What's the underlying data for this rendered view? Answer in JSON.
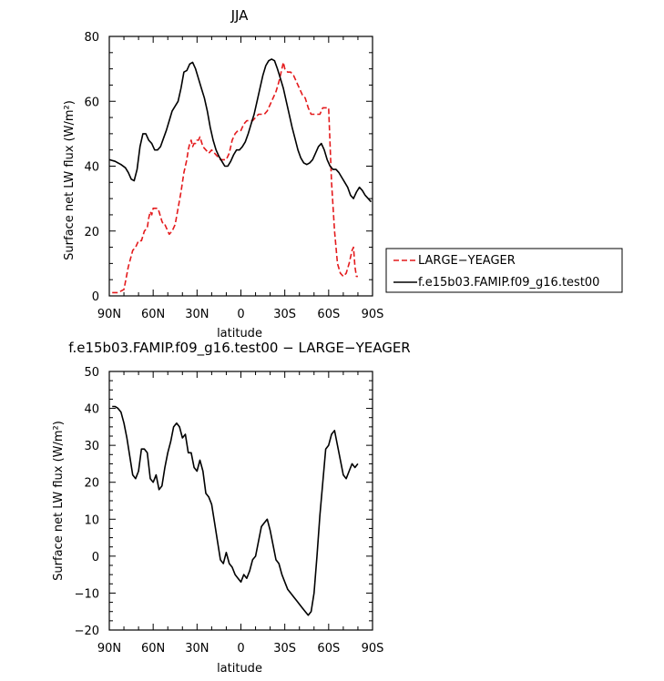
{
  "chart_data": [
    {
      "type": "line",
      "title": "JJA",
      "xlabel": "latitude",
      "ylabel": "Surface net LW flux (W/m²)",
      "xlim": [
        90,
        -90
      ],
      "ylim": [
        0,
        80
      ],
      "xticks": [
        90,
        60,
        30,
        0,
        -30,
        -60,
        -90
      ],
      "xtick_labels": [
        "90N",
        "60N",
        "30N",
        "0",
        "30S",
        "60S",
        "90S"
      ],
      "yticks": [
        0,
        20,
        40,
        60,
        80
      ],
      "ytick_labels": [
        "0",
        "20",
        "40",
        "60",
        "80"
      ],
      "legend_position": "right",
      "series": [
        {
          "name": "LARGE−YEAGER",
          "color": "#e41a1c",
          "dash": "dashed",
          "x": [
            88,
            84,
            80,
            77,
            74,
            72,
            70,
            68,
            66,
            64,
            63,
            62,
            61,
            60,
            59,
            58,
            57,
            56,
            54,
            53,
            52,
            50,
            49,
            47,
            45,
            43,
            41,
            39,
            37,
            36,
            35,
            34,
            33,
            32,
            31,
            30,
            29,
            28,
            26,
            24,
            22,
            20,
            18,
            16,
            14,
            12,
            10,
            8,
            6,
            4,
            2,
            0,
            -2,
            -4,
            -6,
            -8,
            -10,
            -12,
            -14,
            -16,
            -18,
            -20,
            -22,
            -24,
            -26,
            -28,
            -29,
            -30,
            -32,
            -34,
            -36,
            -38,
            -40,
            -42,
            -44,
            -46,
            -48,
            -50,
            -52,
            -54,
            -56,
            -58,
            -60,
            -62,
            -64,
            -66,
            -68,
            -70,
            -72,
            -74,
            -75,
            -76,
            -77,
            -78,
            -79,
            -80
          ],
          "y": [
            1,
            1,
            2,
            9,
            14,
            15,
            17,
            17,
            20,
            21,
            24,
            26,
            25,
            27,
            27,
            27,
            27,
            26,
            23,
            22,
            22,
            20,
            19,
            20,
            22,
            27,
            32,
            38,
            42,
            45,
            47,
            48,
            46,
            47,
            47,
            48,
            48,
            49,
            46,
            45,
            44,
            45,
            44,
            43,
            42,
            42,
            42,
            44,
            48,
            50,
            51,
            51,
            53,
            54,
            54,
            54,
            55,
            56,
            56,
            56,
            57,
            59,
            61,
            63,
            66,
            70,
            72,
            70,
            69,
            69,
            68,
            66,
            64,
            62,
            61,
            58,
            56,
            56,
            56,
            56,
            58,
            58,
            58,
            35,
            20,
            10,
            7,
            6,
            7,
            10,
            12,
            14,
            15,
            9,
            6,
            6
          ]
        },
        {
          "name": "f.e15b03.FAMIP.f09_g16.test00",
          "color": "#000000",
          "dash": "solid",
          "x": [
            90,
            86,
            82,
            79,
            77,
            75,
            73,
            71,
            69,
            67,
            65,
            63,
            61,
            59,
            57,
            55,
            53,
            51,
            49,
            47,
            45,
            43,
            41,
            39,
            37,
            35,
            33,
            31,
            29,
            27,
            25,
            23,
            21,
            19,
            17,
            15,
            13,
            11,
            9,
            7,
            5,
            3,
            1,
            -1,
            -3,
            -5,
            -7,
            -9,
            -11,
            -13,
            -15,
            -17,
            -19,
            -21,
            -23,
            -25,
            -27,
            -29,
            -31,
            -33,
            -35,
            -37,
            -39,
            -41,
            -43,
            -45,
            -47,
            -49,
            -51,
            -53,
            -55,
            -57,
            -59,
            -61,
            -63,
            -65,
            -67,
            -69,
            -71,
            -73,
            -75,
            -77,
            -79,
            -81,
            -83,
            -85,
            -87,
            -89
          ],
          "y": [
            42,
            41.5,
            40.5,
            39.5,
            38,
            36,
            35.5,
            39,
            46,
            50,
            50,
            48,
            47,
            45,
            45,
            46,
            48.5,
            51,
            54,
            57,
            58.5,
            60,
            64,
            69,
            69.5,
            71.5,
            72,
            70,
            67,
            64,
            61,
            57,
            52,
            48,
            45,
            43,
            41.5,
            40,
            40,
            41.5,
            43.5,
            45,
            45,
            46,
            47.5,
            50,
            53,
            56,
            60,
            64,
            68,
            71,
            72.5,
            73,
            72.5,
            70,
            67,
            64,
            60,
            56,
            52,
            48.5,
            45,
            42.5,
            41,
            40.5,
            41,
            42,
            44,
            46,
            47,
            45,
            42,
            40,
            39,
            39,
            38,
            36.5,
            35,
            33.5,
            31,
            30,
            32,
            33.5,
            32.5,
            31,
            30,
            29
          ]
        }
      ]
    },
    {
      "type": "line",
      "title": "f.e15b03.FAMIP.f09_g16.test00 − LARGE−YEAGER",
      "xlabel": "latitude",
      "ylabel": "Surface net LW flux (W/m²)",
      "xlim": [
        90,
        -90
      ],
      "ylim": [
        -20,
        50
      ],
      "xticks": [
        90,
        60,
        30,
        0,
        -30,
        -60,
        -90
      ],
      "xtick_labels": [
        "90N",
        "60N",
        "30N",
        "0",
        "30S",
        "60S",
        "90S"
      ],
      "yticks": [
        -20,
        -10,
        0,
        10,
        20,
        30,
        40,
        50
      ],
      "ytick_labels": [
        "−20",
        "−10",
        "0",
        "10",
        "20",
        "30",
        "40",
        "50"
      ],
      "series": [
        {
          "color": "#000000",
          "dash": "solid",
          "x": [
            88,
            86,
            84,
            82,
            80,
            78,
            76,
            74,
            72,
            70,
            68,
            66,
            64,
            62,
            60,
            58,
            56,
            54,
            52,
            50,
            48,
            46,
            44,
            42,
            40,
            38,
            36,
            34,
            32,
            30,
            28,
            26,
            24,
            22,
            20,
            18,
            16,
            14,
            12,
            10,
            8,
            6,
            4,
            2,
            0,
            -2,
            -4,
            -6,
            -8,
            -10,
            -12,
            -14,
            -16,
            -18,
            -20,
            -22,
            -24,
            -26,
            -28,
            -30,
            -32,
            -34,
            -36,
            -38,
            -40,
            -42,
            -44,
            -46,
            -48,
            -50,
            -52,
            -54,
            -56,
            -58,
            -60,
            -62,
            -64,
            -66,
            -68,
            -70,
            -72,
            -74,
            -76,
            -78,
            -80
          ],
          "y": [
            40.5,
            40.5,
            40,
            39,
            36,
            32,
            27,
            22,
            21,
            23,
            29,
            29,
            28,
            21,
            20,
            22,
            18,
            19,
            24,
            28,
            31,
            35,
            36,
            35,
            32,
            33,
            28,
            28,
            24,
            23,
            26,
            23,
            17,
            16,
            14,
            9,
            4,
            -1,
            -2,
            1,
            -2,
            -3,
            -5,
            -6,
            -7,
            -5,
            -6,
            -4,
            -1,
            0,
            4,
            8,
            9,
            10,
            7,
            3,
            -1,
            -2,
            -5,
            -7,
            -9,
            -10,
            -11,
            -12,
            -13,
            -14,
            -15,
            -16,
            -15,
            -10,
            0,
            11,
            20,
            29,
            30,
            33,
            34,
            30,
            26,
            22,
            21,
            23,
            25,
            24,
            25
          ]
        }
      ]
    }
  ]
}
